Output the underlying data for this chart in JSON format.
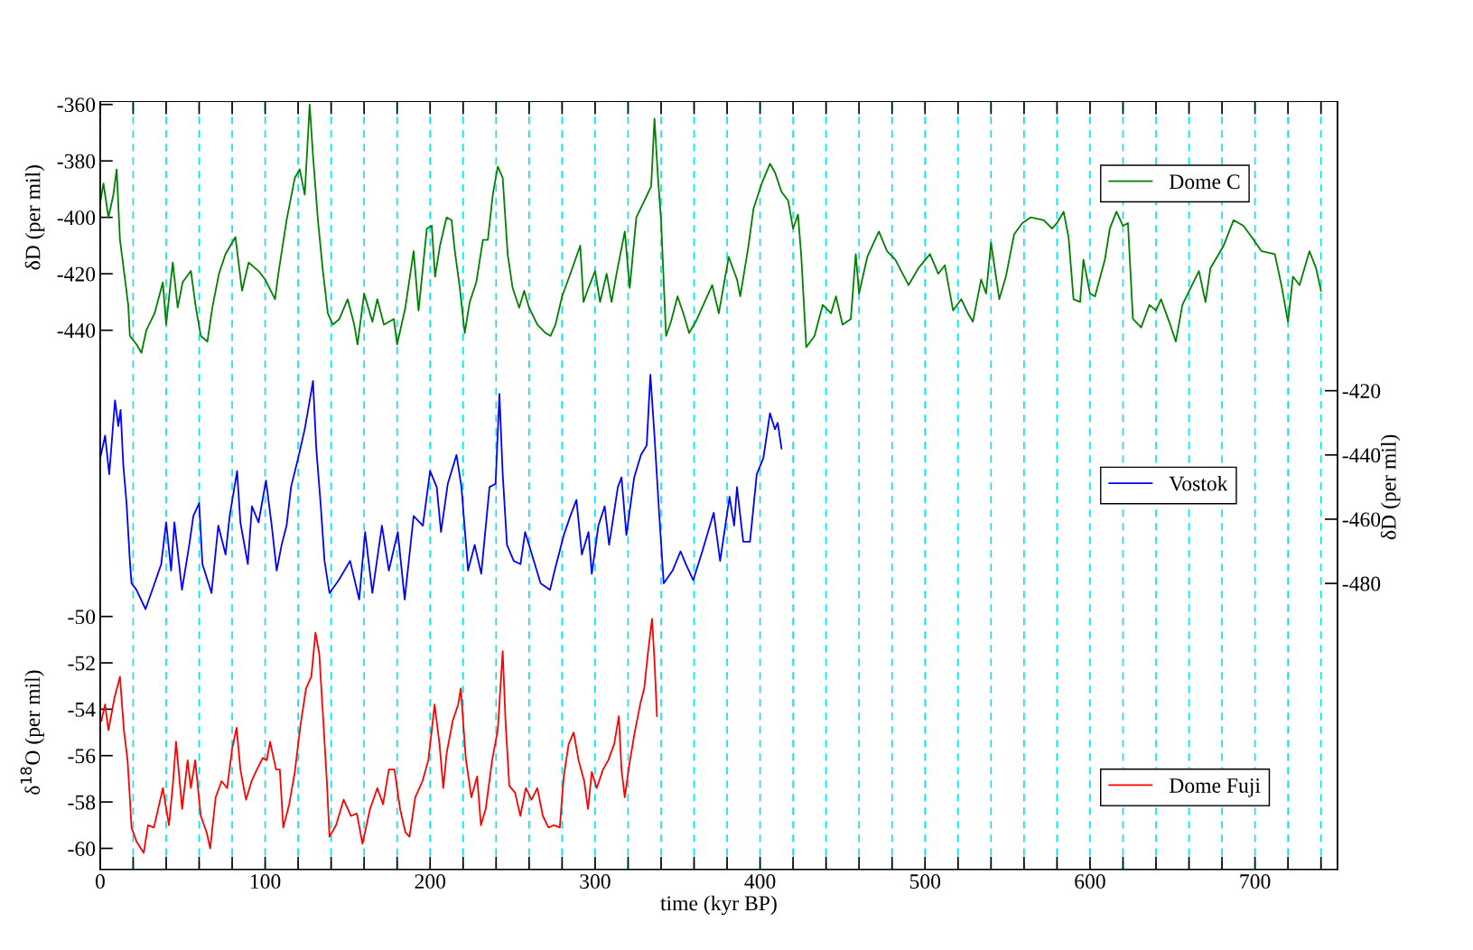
{
  "chart_data": {
    "type": "line",
    "xlabel": "time (kyr BP)",
    "ylabel": "δD (per mil)",
    "y2label": "δD (per mil)",
    "y3label": "δ$^{18}$O (per mil)",
    "xlim": [
      0,
      750
    ],
    "xticks": [
      0,
      {
        "value": 20,
        "label": null
      },
      {
        "value": 40,
        "label": null
      },
      {
        "value": 60,
        "label": null
      },
      {
        "value": 80,
        "label": null
      },
      100,
      {
        "value": 120,
        "label": null
      },
      {
        "value": 140,
        "label": null
      },
      {
        "value": 160,
        "label": null
      },
      {
        "value": 180,
        "label": null
      },
      200,
      {
        "value": 220,
        "label": null
      },
      {
        "value": 240,
        "label": null
      },
      {
        "value": 260,
        "label": null
      },
      {
        "value": 280,
        "label": null
      },
      300,
      {
        "value": 320,
        "label": null
      },
      {
        "value": 340,
        "label": null
      },
      {
        "value": 360,
        "label": null
      },
      {
        "value": 380,
        "label": null
      },
      400,
      {
        "value": 420,
        "label": null
      },
      {
        "value": 440,
        "label": null
      },
      {
        "value": 460,
        "label": null
      },
      {
        "value": 480,
        "label": null
      },
      500,
      {
        "value": 520,
        "label": null
      },
      {
        "value": 540,
        "label": null
      },
      {
        "value": 560,
        "label": null
      },
      {
        "value": 580,
        "label": null
      },
      600,
      {
        "value": 620,
        "label": null
      },
      {
        "value": 640,
        "label": null
      },
      {
        "value": 660,
        "label": null
      },
      {
        "value": 680,
        "label": null
      },
      700,
      {
        "value": 720,
        "label": null
      },
      {
        "value": 740,
        "label": null
      }
    ],
    "ylim": [
      -631,
      -359
    ],
    "yticks": [
      -360,
      -380,
      -400,
      -420,
      -440
    ],
    "y2lim": [
      -569,
      -330
    ],
    "y2ticks": [
      -420,
      -440,
      -460,
      -480
    ],
    "y3lim": [
      -60.9,
      -27.8
    ],
    "y3ticks": [
      -50,
      -52,
      -54,
      -56,
      -58,
      -60
    ],
    "grid": "x",
    "legend": "right",
    "line_style": "solid",
    "marker": "none",
    "series": [
      {
        "name": "Dome C",
        "color": "#008000",
        "axis": "y",
        "x": [
          0,
          2,
          5,
          8,
          10,
          12,
          14,
          17,
          18,
          22,
          25,
          28,
          33,
          38,
          40,
          44,
          47,
          50,
          55,
          58,
          61,
          65,
          68,
          72,
          76,
          82,
          86,
          90,
          96,
          100,
          106,
          108,
          113,
          118,
          121,
          124,
          127,
          129,
          132,
          135,
          138,
          141,
          145,
          150,
          154,
          156,
          160,
          165,
          168,
          172,
          178,
          180,
          185,
          190,
          193,
          198,
          201,
          203,
          206,
          210,
          213,
          215,
          218,
          221,
          224,
          228,
          232,
          235,
          238,
          241,
          244,
          247,
          250,
          254,
          257,
          260,
          265,
          270,
          273,
          276,
          280,
          285,
          291,
          293,
          296,
          300,
          303,
          307,
          310,
          313,
          318,
          321,
          325,
          330,
          334,
          336,
          338,
          340,
          343,
          346,
          350,
          354,
          357,
          361,
          371,
          375,
          381,
          386,
          388,
          393,
          396,
          401,
          406,
          409,
          413,
          417,
          420,
          423,
          425,
          428,
          433,
          438,
          443,
          446,
          450,
          455,
          458,
          460,
          465,
          472,
          477,
          482,
          490,
          496,
          503,
          508,
          512,
          517,
          522,
          526,
          529,
          534,
          537,
          540,
          545,
          549,
          554,
          559,
          564,
          572,
          577,
          580,
          584,
          587,
          590,
          594,
          596,
          600,
          603,
          609,
          612,
          616,
          620,
          623,
          626,
          631,
          636,
          640,
          643,
          648,
          652,
          656,
          661,
          666,
          670,
          673,
          681,
          687,
          693,
          698,
          704,
          712,
          716,
          720,
          723,
          727,
          733,
          737,
          740
        ],
        "values": [
          -395,
          -388,
          -400,
          -392,
          -383,
          -408,
          -417,
          -431,
          -442,
          -445,
          -448,
          -440,
          -434,
          -423,
          -438,
          -416,
          -432,
          -423,
          -419,
          -432,
          -442,
          -444,
          -432,
          -420,
          -413,
          -407,
          -426,
          -416,
          -419,
          -422,
          -429,
          -420,
          -401,
          -386,
          -383,
          -392,
          -360,
          -378,
          -401,
          -419,
          -434,
          -438,
          -436,
          -429,
          -438,
          -445,
          -427,
          -437,
          -429,
          -438,
          -436,
          -445,
          -432,
          -412,
          -433,
          -404,
          -403,
          -421,
          -410,
          -400,
          -401,
          -412,
          -425,
          -441,
          -430,
          -423,
          -408,
          -408,
          -392,
          -382,
          -386,
          -413,
          -425,
          -432,
          -426,
          -432,
          -438,
          -441,
          -442,
          -438,
          -428,
          -420,
          -410,
          -430,
          -425,
          -419,
          -430,
          -420,
          -430,
          -420,
          -405,
          -425,
          -400,
          -394,
          -389,
          -365,
          -385,
          -401,
          -442,
          -437,
          -428,
          -435,
          -441,
          -437,
          -424,
          -434,
          -414,
          -422,
          -428,
          -410,
          -397,
          -388,
          -381,
          -384,
          -391,
          -394,
          -404,
          -399,
          -414,
          -446,
          -442,
          -431,
          -434,
          -428,
          -438,
          -436,
          -413,
          -427,
          -414,
          -405,
          -412,
          -415,
          -424,
          -418,
          -413,
          -420,
          -417,
          -433,
          -429,
          -434,
          -437,
          -422,
          -427,
          -409,
          -429,
          -421,
          -406,
          -402,
          -400,
          -401,
          -404,
          -402,
          -398,
          -407,
          -429,
          -430,
          -415,
          -427,
          -428,
          -415,
          -404,
          -398,
          -403,
          -402,
          -436,
          -439,
          -431,
          -433,
          -429,
          -437,
          -444,
          -431,
          -425,
          -419,
          -430,
          -418,
          -410,
          -401,
          -403,
          -407,
          -412,
          -413,
          -424,
          -437,
          -421,
          -424,
          -412,
          -418,
          -426
        ]
      },
      {
        "name": "Vostok",
        "color": "#0000ff",
        "axis": "y2",
        "x": [
          0,
          3,
          5.5,
          9,
          11,
          12.4,
          14,
          16,
          18,
          19,
          22,
          27.5,
          33,
          37,
          40,
          43,
          45,
          49.6,
          54,
          56.5,
          60,
          62,
          67.5,
          71.6,
          76,
          78.5,
          83,
          85,
          89.5,
          92,
          96,
          100.5,
          104,
          107,
          110,
          113,
          115.7,
          120,
          124,
          126.7,
          129,
          131,
          133.6,
          136,
          139,
          144.6,
          151.5,
          157,
          160.6,
          165,
          170.8,
          175,
          180.4,
          184.6,
          190,
          195.6,
          200,
          204,
          206.6,
          210.7,
          216,
          219,
          223,
          227,
          231,
          236,
          239.7,
          242,
          244,
          246.6,
          250.7,
          254.8,
          257.6,
          261.7,
          267,
          272.7,
          275.5,
          281,
          285,
          288.7,
          292,
          296,
          298,
          302,
          305.8,
          308.5,
          313.8,
          316,
          319,
          323.7,
          327.8,
          331.3,
          333.5,
          336,
          338.8,
          341.6,
          347,
          351.8,
          355,
          359.5,
          365,
          371.9,
          375.8,
          381.5,
          384.3,
          386,
          389.8,
          393.9,
          398,
          402,
          406,
          409,
          410.7,
          413
        ],
        "values": [
          -441,
          -434,
          -446,
          -423,
          -431,
          -426,
          -443,
          -455,
          -473,
          -480,
          -482,
          -488,
          -480,
          -474,
          -461,
          -476,
          -461,
          -482,
          -468,
          -459,
          -455,
          -474,
          -483,
          -462,
          -471,
          -459,
          -445,
          -461,
          -474,
          -456,
          -461,
          -448,
          -462,
          -476,
          -468,
          -462,
          -450,
          -441,
          -432,
          -424,
          -417,
          -438,
          -455,
          -473,
          -483,
          -479,
          -473,
          -485,
          -464,
          -483,
          -462,
          -476,
          -464,
          -485,
          -459,
          -462,
          -445,
          -450,
          -464,
          -449,
          -440,
          -450,
          -476,
          -468,
          -477,
          -450,
          -449,
          -421,
          -446,
          -468,
          -473,
          -474,
          -464,
          -471,
          -480,
          -482,
          -476,
          -465,
          -459,
          -454,
          -471,
          -464,
          -477,
          -462,
          -456,
          -468,
          -450,
          -447,
          -465,
          -447,
          -440,
          -437,
          -415,
          -434,
          -458,
          -480,
          -476,
          -470,
          -474,
          -479,
          -470,
          -458,
          -473,
          -453,
          -462,
          -450,
          -467,
          -467,
          -446,
          -441,
          -427,
          -432,
          -430,
          -438
        ]
      },
      {
        "name": "Dome Fuji",
        "color": "#ff0000",
        "axis": "y3",
        "x": [
          0.7,
          3,
          5,
          8.7,
          12,
          14.4,
          16.6,
          17.8,
          19,
          22,
          26.4,
          29,
          32.6,
          38,
          41.7,
          44,
          46,
          49.7,
          53,
          55,
          57.6,
          61,
          64.5,
          66.7,
          70,
          73.6,
          77,
          80,
          82.7,
          85,
          88.4,
          91.8,
          95,
          98.6,
          101,
          103,
          106.6,
          108.9,
          111,
          114.6,
          118,
          121.4,
          124.8,
          128,
          130.5,
          132.8,
          135,
          137.4,
          139,
          143,
          147.6,
          152,
          155.6,
          159,
          163.6,
          168,
          171.5,
          175,
          178.4,
          181.8,
          185,
          187.5,
          191,
          195.4,
          198.9,
          201,
          202.7,
          205.7,
          208,
          210,
          213.7,
          217,
          218.6,
          221.6,
          225,
          228.5,
          230.8,
          233.7,
          237.6,
          241,
          244,
          245.7,
          248,
          251.5,
          254.7,
          258,
          261.5,
          265,
          268.3,
          271.8,
          275,
          278.6,
          281,
          284,
          287,
          290,
          293.4,
          295.7,
          298,
          301,
          304.8,
          308,
          311.6,
          314.4,
          316,
          318,
          320.7,
          324,
          327.6,
          329.8,
          332,
          334.5,
          336,
          337.5
        ],
        "values": [
          -54.5,
          -53.8,
          -54.9,
          -53.5,
          -52.6,
          -54.9,
          -56.2,
          -57.6,
          -59.1,
          -59.7,
          -60.2,
          -59.0,
          -59.1,
          -57.4,
          -59.0,
          -57.3,
          -55.4,
          -58.3,
          -56.2,
          -57.4,
          -56.2,
          -58.6,
          -59.3,
          -60.0,
          -57.8,
          -57.1,
          -57.4,
          -55.7,
          -54.8,
          -56.6,
          -57.9,
          -57.1,
          -56.6,
          -56.1,
          -56.2,
          -55.4,
          -56.6,
          -56.6,
          -59.1,
          -58.1,
          -56.7,
          -54.7,
          -53.1,
          -52.6,
          -50.7,
          -51.6,
          -54.2,
          -57.1,
          -59.5,
          -59.0,
          -57.9,
          -58.6,
          -58.5,
          -59.8,
          -58.3,
          -57.4,
          -58.1,
          -56.6,
          -56.6,
          -58.3,
          -59.3,
          -59.5,
          -57.8,
          -57.1,
          -56.2,
          -54.9,
          -53.8,
          -55.5,
          -57.4,
          -55.9,
          -54.5,
          -53.8,
          -53.1,
          -56.1,
          -57.8,
          -56.9,
          -59.0,
          -58.3,
          -56.2,
          -54.9,
          -51.5,
          -54.5,
          -57.3,
          -57.6,
          -58.6,
          -57.4,
          -57.9,
          -57.4,
          -58.6,
          -59.1,
          -59.0,
          -59.1,
          -56.9,
          -55.5,
          -55.0,
          -56.2,
          -57.1,
          -58.3,
          -56.7,
          -57.4,
          -56.6,
          -56.2,
          -55.5,
          -54.3,
          -56.6,
          -57.8,
          -56.4,
          -55.0,
          -53.7,
          -53.1,
          -51.6,
          -50.1,
          -51.9,
          -54.3
        ]
      }
    ]
  }
}
